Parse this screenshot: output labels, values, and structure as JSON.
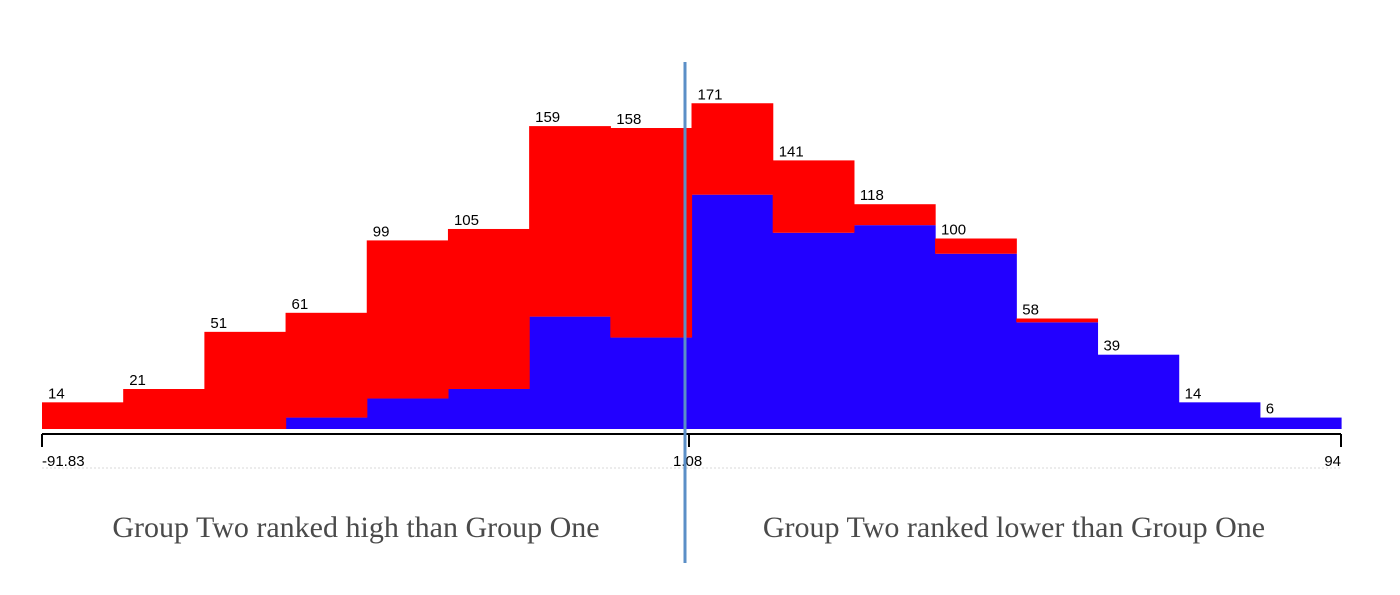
{
  "chart_data": {
    "type": "bar",
    "subtype": "stacked-histogram",
    "bins": 16,
    "values": [
      14,
      21,
      51,
      61,
      99,
      105,
      159,
      158,
      171,
      141,
      118,
      100,
      58,
      39,
      14,
      6
    ],
    "series": [
      {
        "color": "#2200ff",
        "values": [
          0,
          0,
          0,
          6,
          16,
          21,
          59,
          48,
          123,
          103,
          107,
          92,
          56,
          39,
          14,
          6
        ]
      },
      {
        "color": "#ff0000",
        "values": [
          14,
          21,
          51,
          55,
          83,
          84,
          100,
          110,
          48,
          38,
          11,
          8,
          2,
          0,
          0,
          0
        ]
      }
    ],
    "x_ticks": [
      "-91.83",
      "1.08",
      "94"
    ],
    "ylim": [
      0,
      180
    ],
    "grid": false,
    "divider_color": "#5b8fc7"
  },
  "captions": {
    "left": "Group Two ranked high than Group One",
    "right": "Group Two ranked lower than Group One"
  }
}
